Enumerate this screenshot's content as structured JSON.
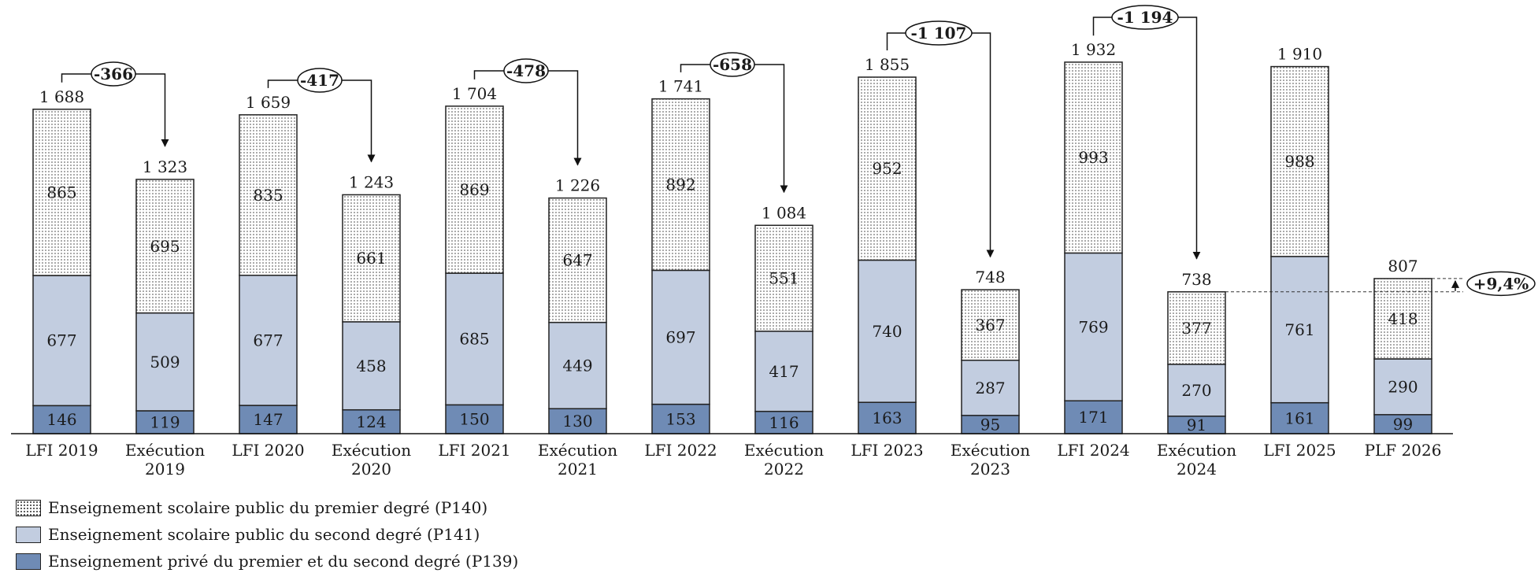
{
  "chart_data": {
    "type": "bar",
    "stacked": true,
    "categories": [
      "LFI 2019",
      "Exécution 2019",
      "LFI 2020",
      "Exécution 2020",
      "LFI 2021",
      "Exécution 2021",
      "LFI 2022",
      "Exécution 2022",
      "LFI 2023",
      "Exécution 2023",
      "LFI 2024",
      "Exécution 2024",
      "LFI 2025",
      "PLF 2026"
    ],
    "category_lines": [
      [
        "LFI 2019"
      ],
      [
        "Exécution",
        "2019"
      ],
      [
        "LFI 2020"
      ],
      [
        "Exécution",
        "2020"
      ],
      [
        "LFI 2021"
      ],
      [
        "Exécution",
        "2021"
      ],
      [
        "LFI 2022"
      ],
      [
        "Exécution",
        "2022"
      ],
      [
        "LFI 2023"
      ],
      [
        "Exécution",
        "2023"
      ],
      [
        "LFI 2024"
      ],
      [
        "Exécution",
        "2024"
      ],
      [
        "LFI 2025"
      ],
      [
        "PLF 2026"
      ]
    ],
    "series": [
      {
        "name": "Enseignement privé du premier et du second degré (P139)",
        "values": [
          146,
          119,
          147,
          124,
          150,
          130,
          153,
          116,
          163,
          95,
          171,
          91,
          161,
          99
        ]
      },
      {
        "name": "Enseignement scolaire public du second degré (P141)",
        "values": [
          677,
          509,
          677,
          458,
          685,
          449,
          697,
          417,
          740,
          287,
          769,
          270,
          761,
          290
        ]
      },
      {
        "name": "Enseignement scolaire public du premier degré (P140)",
        "values": [
          865,
          695,
          835,
          661,
          869,
          647,
          892,
          551,
          952,
          367,
          993,
          377,
          988,
          418
        ]
      }
    ],
    "series_values_text": [
      [
        "146",
        "119",
        "147",
        "124",
        "150",
        "130",
        "153",
        "116",
        "163",
        "95",
        "171",
        "91",
        "161",
        "99"
      ],
      [
        "677",
        "509",
        "677",
        "458",
        "685",
        "449",
        "697",
        "417",
        "740",
        "287",
        "769",
        "270",
        "761",
        "290"
      ],
      [
        "865",
        "695",
        "835",
        "661",
        "869",
        "647",
        "892",
        "551",
        "952",
        "367",
        "993",
        "377",
        "988",
        "418"
      ]
    ],
    "totals": [
      1688,
      1323,
      1659,
      1243,
      1704,
      1226,
      1741,
      1084,
      1855,
      748,
      1932,
      738,
      1910,
      807
    ],
    "totals_text": [
      "1 688",
      "1 323",
      "1 659",
      "1 243",
      "1 704",
      "1 226",
      "1 741",
      "1 084",
      "1 855",
      "748",
      "1 932",
      "738",
      "1 910",
      "807"
    ],
    "annotations": [
      {
        "from": 0,
        "to": 1,
        "label": "-366"
      },
      {
        "from": 2,
        "to": 3,
        "label": "-417"
      },
      {
        "from": 4,
        "to": 5,
        "label": "-478"
      },
      {
        "from": 6,
        "to": 7,
        "label": "-658"
      },
      {
        "from": 8,
        "to": 9,
        "label": "-1 107"
      },
      {
        "from": 10,
        "to": 11,
        "label": "-1 194"
      },
      {
        "from": 11,
        "to": 13,
        "label": "+9,4%"
      }
    ],
    "ylim": [
      0,
      2150
    ],
    "grid": false,
    "legend_position": "bottom-left",
    "colors": {
      "P139": "#6f8bb5",
      "P141": "#c2cde0",
      "P140": "#ffffff",
      "P140_dots": "#444444",
      "stroke": "#222222"
    }
  },
  "legend": {
    "items": [
      {
        "label": "Enseignement scolaire public du premier degré (P140)",
        "swatch": "dotted"
      },
      {
        "label": "Enseignement scolaire public du second degré (P141)",
        "swatch": "light-blue"
      },
      {
        "label": "Enseignement privé du premier et du second degré (P139)",
        "swatch": "dark-blue"
      }
    ]
  }
}
